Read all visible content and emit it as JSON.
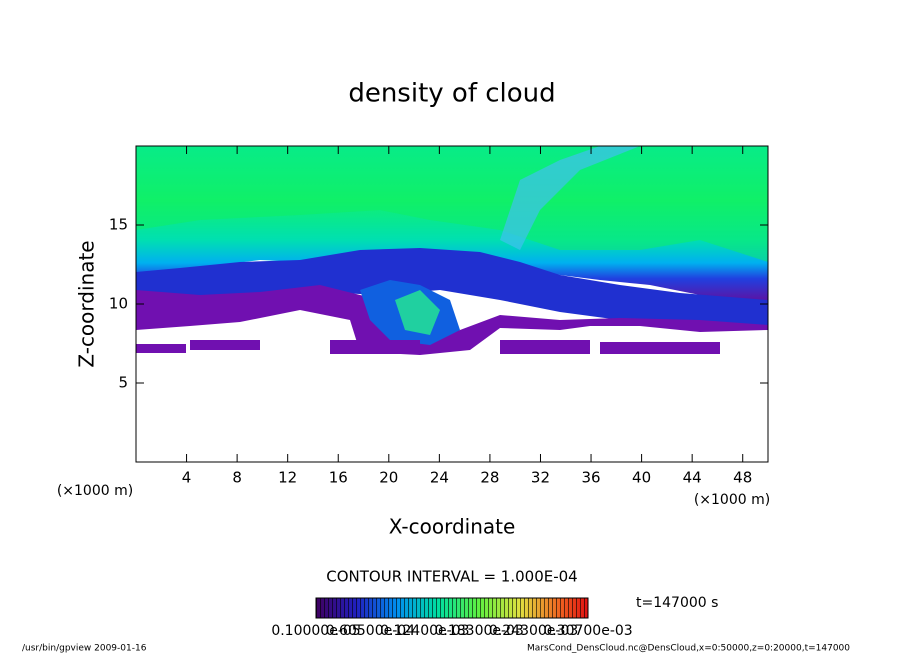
{
  "chart_data": {
    "type": "contour",
    "title": "density of cloud",
    "x_label": "X-coordinate",
    "y_label": "Z-coordinate",
    "x_unit": "(×1000 m)",
    "y_unit": "(×1000 m)",
    "xlim": [
      0,
      50
    ],
    "ylim": [
      0,
      20
    ],
    "xticks": [
      4,
      8,
      12,
      16,
      20,
      24,
      28,
      32,
      36,
      40,
      44,
      48
    ],
    "yticks": [
      5,
      10,
      15
    ],
    "contour_interval": "CONTOUR INTERVAL = 1.000E-04",
    "time": "t=147000 s",
    "colorbar_labels": [
      "0.10000e-05",
      "0.60500e-04",
      "0.12400e-03",
      "0.18300e-03",
      "0.24300e-03",
      "0.30700e-03"
    ],
    "footer_left": "/usr/bin/gpview  2009-01-16",
    "footer_right": "MarsCond_DensCloud.nc@DensCloud,x=0:50000,z=0:20000,t=147000"
  }
}
